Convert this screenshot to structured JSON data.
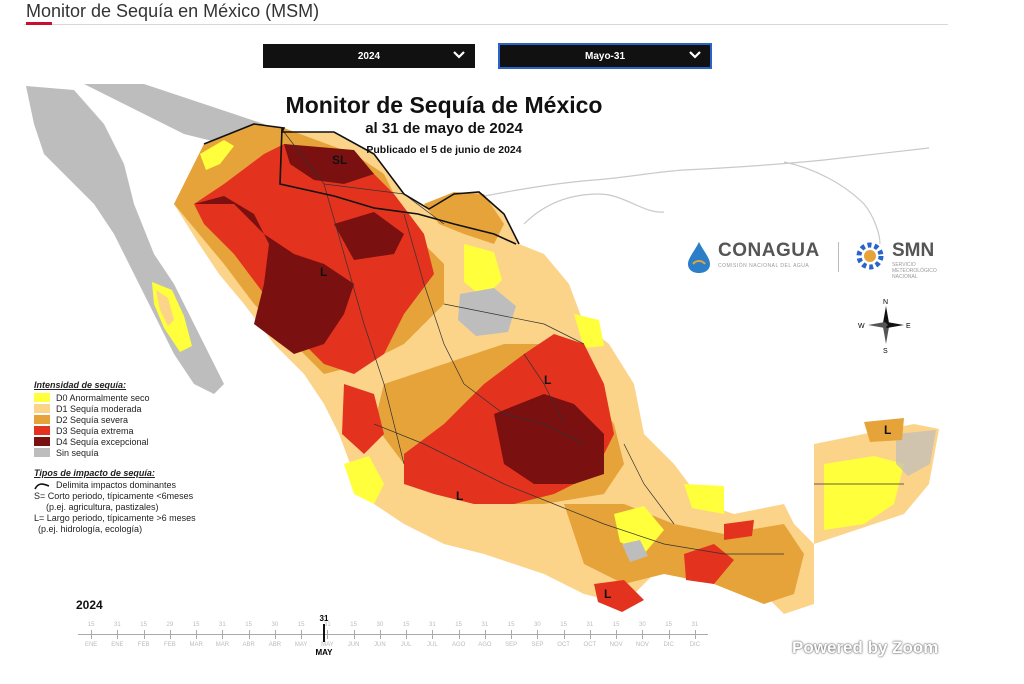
{
  "header": {
    "title": "Monitor de Sequía en México (MSM)"
  },
  "controls": {
    "year": {
      "value": "2024",
      "icon": "chevron-down-icon"
    },
    "date": {
      "value": "Mayo-31",
      "icon": "chevron-down-icon"
    }
  },
  "map": {
    "title": "Monitor de Sequía de México",
    "subtitle": "al 31 de mayo de 2024",
    "published": "Publicado el 5 de junio de 2024",
    "labels": {
      "sl": "SL",
      "l": "L"
    },
    "logos": {
      "conagua": "CONAGUA",
      "conagua_sub": "COMISIÓN NACIONAL DEL AGUA",
      "smn": "SMN",
      "smn_sub": "SERVICIO METEOROLÓGICO NACIONAL"
    },
    "compass": {
      "n": "N",
      "s": "S",
      "e": "E",
      "w": "W"
    }
  },
  "legend": {
    "intensity_title": "Intensidad de sequía:",
    "items": [
      {
        "code": "D0",
        "label": "D0 Anormalmente seco",
        "color": "#ffff3c"
      },
      {
        "code": "D1",
        "label": "D1 Sequía moderada",
        "color": "#fbd48a"
      },
      {
        "code": "D2",
        "label": "D2 Sequía severa",
        "color": "#e6a33a"
      },
      {
        "code": "D3",
        "label": "D3 Sequía extrema",
        "color": "#e3321e"
      },
      {
        "code": "D4",
        "label": "D4 Sequía excepcional",
        "color": "#7a1010"
      },
      {
        "code": "none",
        "label": "Sin sequía",
        "color": "#bdbdbd"
      }
    ],
    "impact_title": "Tipos de impacto de sequía:",
    "impact_line": "Delimita impactos dominantes",
    "impact_s": "S= Corto periodo, típicamente <6meses",
    "impact_s_ex": "(p.ej. agricultura, pastizales)",
    "impact_l": "L= Largo periodo, típicamente >6 meses",
    "impact_l_ex": "(p.ej. hidrología, ecología)"
  },
  "timeline": {
    "year": "2024",
    "current_day": "31",
    "current_month": "MAY",
    "months": [
      "ENE",
      "ENE",
      "FEB",
      "FEB",
      "MAR",
      "MAR",
      "ABR",
      "ABR",
      "MAY",
      "MAY",
      "JUN",
      "JUN",
      "JUL",
      "JUL",
      "AGO",
      "AGO",
      "SEP",
      "SEP",
      "OCT",
      "OCT",
      "NOV",
      "NOV",
      "DIC",
      "DIC"
    ],
    "days": [
      "15",
      "31",
      "15",
      "29",
      "15",
      "31",
      "15",
      "30",
      "15",
      "31",
      "15",
      "30",
      "15",
      "31",
      "15",
      "31",
      "15",
      "30",
      "15",
      "31",
      "15",
      "30",
      "15",
      "31"
    ]
  },
  "watermark": "Powered by Zoom",
  "colors": {
    "sea": "#ffffff",
    "neighbor": "#bdbdbd",
    "accent": "#c8102e"
  }
}
